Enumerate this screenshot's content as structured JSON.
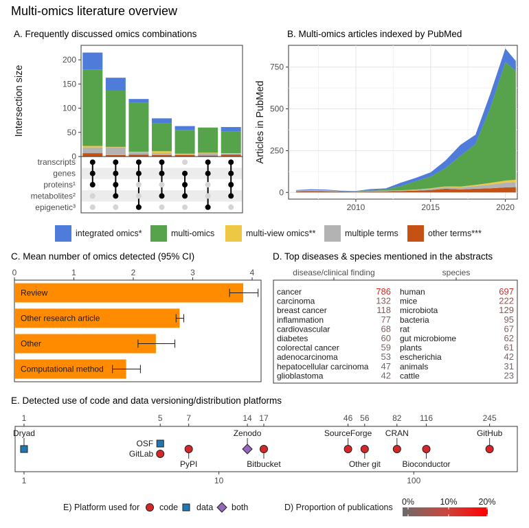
{
  "title": "Multi-omics literature overview",
  "colors": {
    "integrated": "#4f7bdb",
    "multi": "#56a34c",
    "multiview": "#ecc845",
    "multiple": "#b3b3b3",
    "other": "#c65114",
    "bar_c": "#ff8c00",
    "code": "#d62728",
    "data": "#1f77b4",
    "both": "#9467bd",
    "highlight": "#e3211c"
  },
  "legend_main": [
    {
      "label": "integrated omics*",
      "color": "#4f7bdb"
    },
    {
      "label": "multi-omics",
      "color": "#56a34c"
    },
    {
      "label": "multi-view omics**",
      "color": "#ecc845"
    },
    {
      "label": "multiple terms",
      "color": "#b3b3b3"
    },
    {
      "label": "other terms***",
      "color": "#c65114"
    }
  ],
  "chart_data": [
    {
      "id": "A",
      "type": "bar",
      "title": "A. Frequently discussed omics combinations",
      "ylabel": "Intersection size",
      "ylim": [
        0,
        230
      ],
      "yticks": [
        0,
        50,
        100,
        150,
        200
      ],
      "sets": [
        "transcripts",
        "genes",
        "proteins¹",
        "metabolites²",
        "epigenetic³"
      ],
      "combinations": [
        [
          1,
          1,
          1,
          0,
          0
        ],
        [
          1,
          1,
          1,
          1,
          0
        ],
        [
          1,
          1,
          0,
          0,
          1
        ],
        [
          1,
          1,
          0,
          1,
          0
        ],
        [
          0,
          1,
          1,
          1,
          0
        ],
        [
          1,
          1,
          0,
          0,
          1
        ],
        [
          1,
          1,
          1,
          1,
          0
        ]
      ],
      "series": [
        {
          "name": "other terms***",
          "values": [
            7,
            3,
            4,
            3,
            3,
            2,
            4
          ]
        },
        {
          "name": "multiple terms",
          "values": [
            12,
            16,
            5,
            4,
            2,
            5,
            2
          ]
        },
        {
          "name": "multi-view omics**",
          "values": [
            3,
            1,
            1,
            4,
            1,
            1,
            1
          ]
        },
        {
          "name": "multi-omics",
          "values": [
            158,
            117,
            101,
            58,
            49,
            52,
            45
          ]
        },
        {
          "name": "integrated omics*",
          "values": [
            35,
            26,
            8,
            10,
            8,
            0,
            9
          ]
        }
      ]
    },
    {
      "id": "B",
      "type": "area",
      "title": "B. Multi-omics articles indexed by PubMed",
      "ylabel": "Articles in PubMed",
      "xlim": [
        2005.5,
        2020.8
      ],
      "ylim": [
        -40,
        880
      ],
      "xticks": [
        2010,
        2015,
        2020
      ],
      "yticks": [
        0,
        250,
        500,
        750
      ],
      "x": [
        2006,
        2007,
        2008,
        2009,
        2010,
        2011,
        2012,
        2013,
        2014,
        2015,
        2016,
        2017,
        2018,
        2019,
        2020,
        2020.7
      ],
      "series": [
        {
          "name": "other terms***",
          "values": [
            6,
            8,
            7,
            5,
            4,
            5,
            6,
            8,
            10,
            14,
            22,
            18,
            22,
            25,
            30,
            32
          ]
        },
        {
          "name": "multiple terms",
          "values": [
            4,
            5,
            5,
            2,
            2,
            3,
            3,
            4,
            5,
            8,
            10,
            12,
            16,
            22,
            28,
            30
          ]
        },
        {
          "name": "multi-view omics**",
          "values": [
            1,
            1,
            1,
            0,
            0,
            1,
            1,
            1,
            2,
            3,
            4,
            5,
            7,
            10,
            13,
            14
          ]
        },
        {
          "name": "multi-omics",
          "values": [
            0,
            0,
            0,
            0,
            1,
            5,
            8,
            25,
            50,
            70,
            110,
            185,
            245,
            450,
            710,
            650
          ]
        },
        {
          "name": "integrated omics*",
          "values": [
            3,
            5,
            4,
            3,
            2,
            6,
            6,
            20,
            20,
            25,
            45,
            65,
            55,
            85,
            80,
            60
          ]
        }
      ]
    },
    {
      "id": "C",
      "type": "bar",
      "title": "C. Mean number of omics detected (95% CI)",
      "xlim": [
        0,
        4.15
      ],
      "xticks": [
        0,
        1,
        2,
        3,
        4
      ],
      "categories": [
        "Review",
        "Other research article",
        "Other",
        "Computational method"
      ],
      "values": [
        3.85,
        2.78,
        2.38,
        1.88
      ],
      "ci_low": [
        3.62,
        2.72,
        2.08,
        1.65
      ],
      "ci_high": [
        4.1,
        2.85,
        2.7,
        2.12
      ]
    },
    {
      "id": "D",
      "type": "table",
      "title": "D. Top diseases & species mentioned in the abstracts",
      "columns": [
        "disease/clinical finding",
        "species"
      ],
      "diseases": [
        {
          "term": "cancer",
          "count": 786
        },
        {
          "term": "carcinoma",
          "count": 132
        },
        {
          "term": "breast cancer",
          "count": 118
        },
        {
          "term": "inflammation",
          "count": 77
        },
        {
          "term": "cardiovascular",
          "count": 68
        },
        {
          "term": "diabetes",
          "count": 60
        },
        {
          "term": "colorectal cancer",
          "count": 59
        },
        {
          "term": "adenocarcinoma",
          "count": 53
        },
        {
          "term": "hepatocellular carcinoma",
          "count": 47
        },
        {
          "term": "glioblastoma",
          "count": 42
        }
      ],
      "species": [
        {
          "term": "human",
          "count": 697
        },
        {
          "term": "mice",
          "count": 222
        },
        {
          "term": "microbiota",
          "count": 129
        },
        {
          "term": "bacteria",
          "count": 95
        },
        {
          "term": "rat",
          "count": 67
        },
        {
          "term": "gut microbiome",
          "count": 62
        },
        {
          "term": "plants",
          "count": 61
        },
        {
          "term": "escherichia",
          "count": 42
        },
        {
          "term": "animals",
          "count": 31
        },
        {
          "term": "cattle",
          "count": 23
        }
      ]
    },
    {
      "id": "E",
      "type": "scatter",
      "title": "E. Detected use of code and data versioning/distribution platforms",
      "x_scale": "log",
      "xticks_bottom": [
        1,
        10,
        100
      ],
      "xticks_top": [
        1,
        5,
        7,
        14,
        17,
        46,
        56,
        82,
        116,
        245
      ],
      "points": [
        {
          "name": "Dryad",
          "count": 1,
          "use": "data",
          "label_pos": "above"
        },
        {
          "name": "OSF",
          "count": 5,
          "use": "data",
          "label_pos": "left"
        },
        {
          "name": "GitLab",
          "count": 5,
          "use": "code",
          "label_pos": "left"
        },
        {
          "name": "PyPI",
          "count": 7,
          "use": "code",
          "label_pos": "below"
        },
        {
          "name": "Zenodo",
          "count": 14,
          "use": "both",
          "label_pos": "above"
        },
        {
          "name": "Bitbucket",
          "count": 17,
          "use": "code",
          "label_pos": "below"
        },
        {
          "name": "SourceForge",
          "count": 46,
          "use": "code",
          "label_pos": "above"
        },
        {
          "name": "Other git",
          "count": 56,
          "use": "code",
          "label_pos": "below"
        },
        {
          "name": "CRAN",
          "count": 82,
          "use": "code",
          "label_pos": "above"
        },
        {
          "name": "Bioconductor",
          "count": 116,
          "use": "code",
          "label_pos": "below"
        },
        {
          "name": "GitHub",
          "count": 245,
          "use": "code",
          "label_pos": "above"
        }
      ]
    }
  ],
  "legend_e": {
    "title": "E) Platform used for",
    "items": [
      {
        "label": "code",
        "use": "code"
      },
      {
        "label": "data",
        "use": "data"
      },
      {
        "label": "both",
        "use": "both"
      }
    ]
  },
  "legend_d": {
    "title": "D) Proportion of publications",
    "ticks": [
      "0%",
      "10%",
      "20%"
    ]
  }
}
